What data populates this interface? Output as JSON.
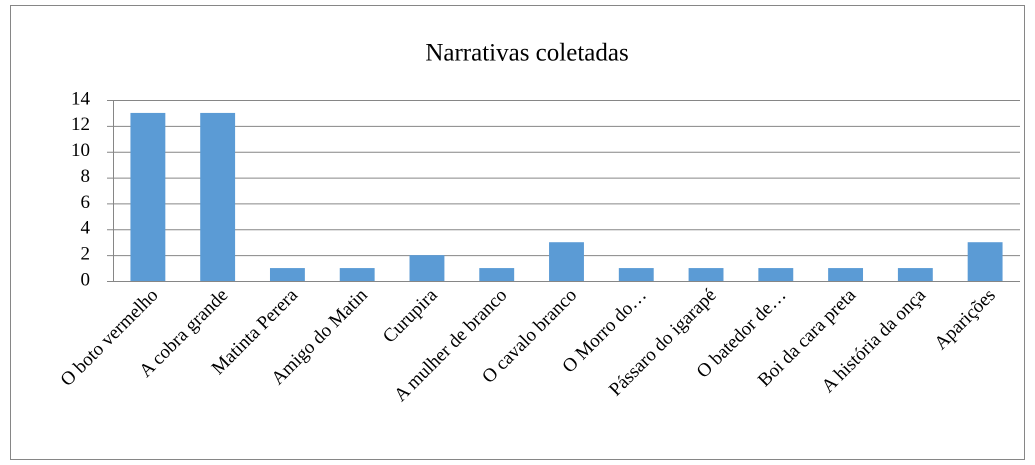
{
  "chart_data": {
    "type": "bar",
    "title": "Narrativas coletadas",
    "categories": [
      "O boto vermelho",
      "A cobra grande",
      "Matinta Perera",
      "Amigo do Matin",
      "Curupira",
      "A mulher de branco",
      "O cavalo branco",
      "O Morro do…",
      "Pássaro do igarapé",
      "O batedor de…",
      "Boi da cara preta",
      "A história da onça",
      "Aparições"
    ],
    "values": [
      13,
      13,
      1,
      1,
      2,
      1,
      3,
      1,
      1,
      1,
      1,
      1,
      3
    ],
    "color": "#5b9bd5",
    "ylim": [
      0,
      14
    ],
    "yticks": [
      0,
      2,
      4,
      6,
      8,
      10,
      12,
      14
    ],
    "grid": true
  }
}
